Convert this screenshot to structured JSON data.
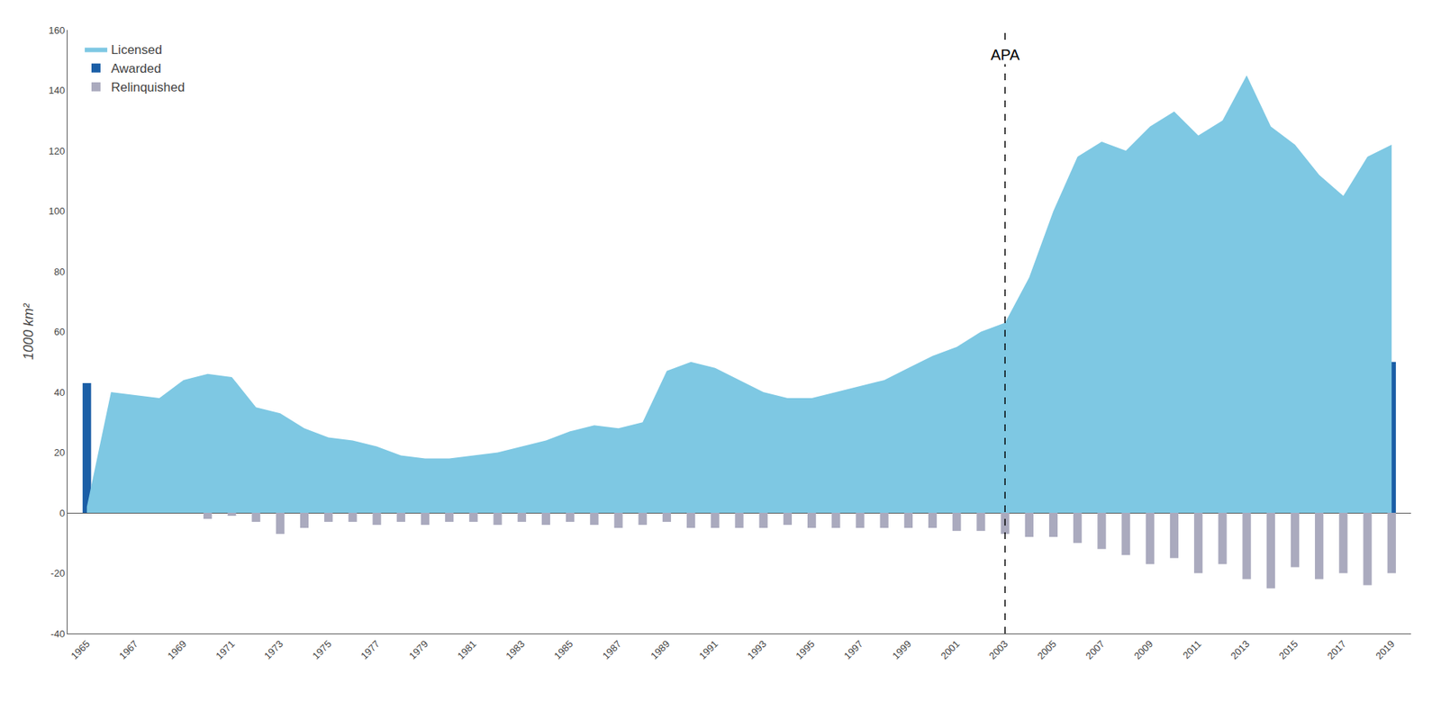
{
  "chart_data": {
    "type": "bar",
    "x": [
      1965,
      1966,
      1967,
      1968,
      1969,
      1970,
      1971,
      1972,
      1973,
      1974,
      1975,
      1976,
      1977,
      1978,
      1979,
      1980,
      1981,
      1982,
      1983,
      1984,
      1985,
      1986,
      1987,
      1988,
      1989,
      1990,
      1991,
      1992,
      1993,
      1994,
      1995,
      1996,
      1997,
      1998,
      1999,
      2000,
      2001,
      2002,
      2003,
      2004,
      2005,
      2006,
      2007,
      2008,
      2009,
      2010,
      2011,
      2012,
      2013,
      2014,
      2015,
      2016,
      2017,
      2018,
      2019
    ],
    "series": [
      {
        "name": "Licensed",
        "type": "area",
        "color": "#7EC8E3",
        "values": [
          2,
          40,
          39,
          38,
          44,
          46,
          45,
          35,
          33,
          28,
          25,
          24,
          22,
          19,
          18,
          18,
          19,
          20,
          22,
          24,
          27,
          29,
          28,
          30,
          47,
          50,
          48,
          44,
          40,
          38,
          38,
          40,
          42,
          44,
          48,
          52,
          55,
          60,
          63,
          78,
          100,
          118,
          123,
          120,
          128,
          133,
          125,
          130,
          145,
          128,
          122,
          112,
          105,
          118,
          122
        ]
      },
      {
        "name": "Awarded",
        "type": "bar",
        "color": "#1A5EA6",
        "values": [
          43,
          5,
          1,
          1,
          7,
          2,
          1,
          1,
          2,
          1,
          1,
          2,
          2,
          2,
          2,
          3,
          3,
          4,
          5,
          5,
          6,
          5,
          5,
          5,
          7,
          6,
          4,
          3,
          3,
          3,
          4,
          5,
          6,
          7,
          7,
          8,
          9,
          11,
          14,
          16,
          20,
          30,
          22,
          25,
          20,
          25,
          18,
          28,
          33,
          20,
          22,
          18,
          28,
          33,
          50
        ]
      },
      {
        "name": "Relinquished",
        "type": "bar",
        "color": "#AAAABE",
        "values": [
          0,
          0,
          0,
          0,
          0,
          -2,
          -1,
          -3,
          -7,
          -5,
          -3,
          -3,
          -4,
          -3,
          -4,
          -3,
          -3,
          -4,
          -3,
          -4,
          -3,
          -4,
          -5,
          -4,
          -3,
          -5,
          -5,
          -5,
          -5,
          -4,
          -5,
          -5,
          -5,
          -5,
          -5,
          -5,
          -6,
          -6,
          -7,
          -8,
          -8,
          -10,
          -12,
          -14,
          -17,
          -15,
          -20,
          -17,
          -22,
          -25,
          -18,
          -22,
          -20,
          -24,
          -20
        ]
      }
    ],
    "y_label": "1000 km²",
    "annotations": [
      {
        "text": "APA",
        "x": 2003,
        "y": 155,
        "line_style": "dashed"
      }
    ],
    "xlim": [
      1964.2,
      2019.8
    ],
    "xticks": [
      1965,
      1967,
      1969,
      1971,
      1973,
      1975,
      1977,
      1979,
      1981,
      1983,
      1985,
      1987,
      1989,
      1991,
      1993,
      1995,
      1997,
      1999,
      2001,
      2003,
      2005,
      2007,
      2009,
      2011,
      2013,
      2015,
      2017,
      2019
    ],
    "ylim": [
      -40,
      160
    ],
    "yticks": [
      -40,
      -20,
      0,
      20,
      40,
      60,
      80,
      100,
      120,
      140,
      160
    ],
    "grid": false,
    "legend": "upper left"
  }
}
